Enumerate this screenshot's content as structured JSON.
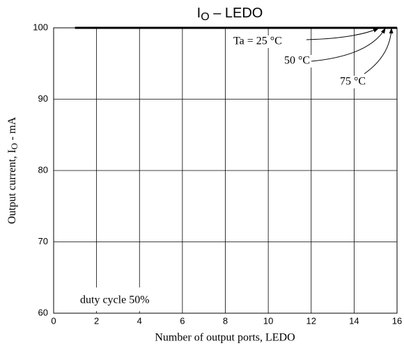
{
  "chart_data": {
    "type": "line",
    "title": [
      "I",
      "O",
      " – LEDO"
    ],
    "x_label": "Number of output ports, LEDO",
    "y_label": [
      "Output current,  I",
      "O",
      " - mA"
    ],
    "annotation": "duty cycle 50%",
    "x": [
      1,
      16
    ],
    "series": [
      {
        "name": "Ta = 25 °C",
        "color": "#000000",
        "values": [
          100,
          100
        ]
      },
      {
        "name": "50 °C",
        "color": "#000000",
        "values": [
          100,
          100
        ]
      },
      {
        "name": "75 °C",
        "color": "#000000",
        "values": [
          100,
          100
        ]
      }
    ],
    "xlim": [
      0,
      16
    ],
    "xticks": [
      0,
      2,
      4,
      6,
      8,
      10,
      12,
      14,
      16
    ],
    "ylim": [
      60,
      100
    ],
    "yticks": [
      60,
      70,
      80,
      90,
      100
    ],
    "grid": true
  }
}
